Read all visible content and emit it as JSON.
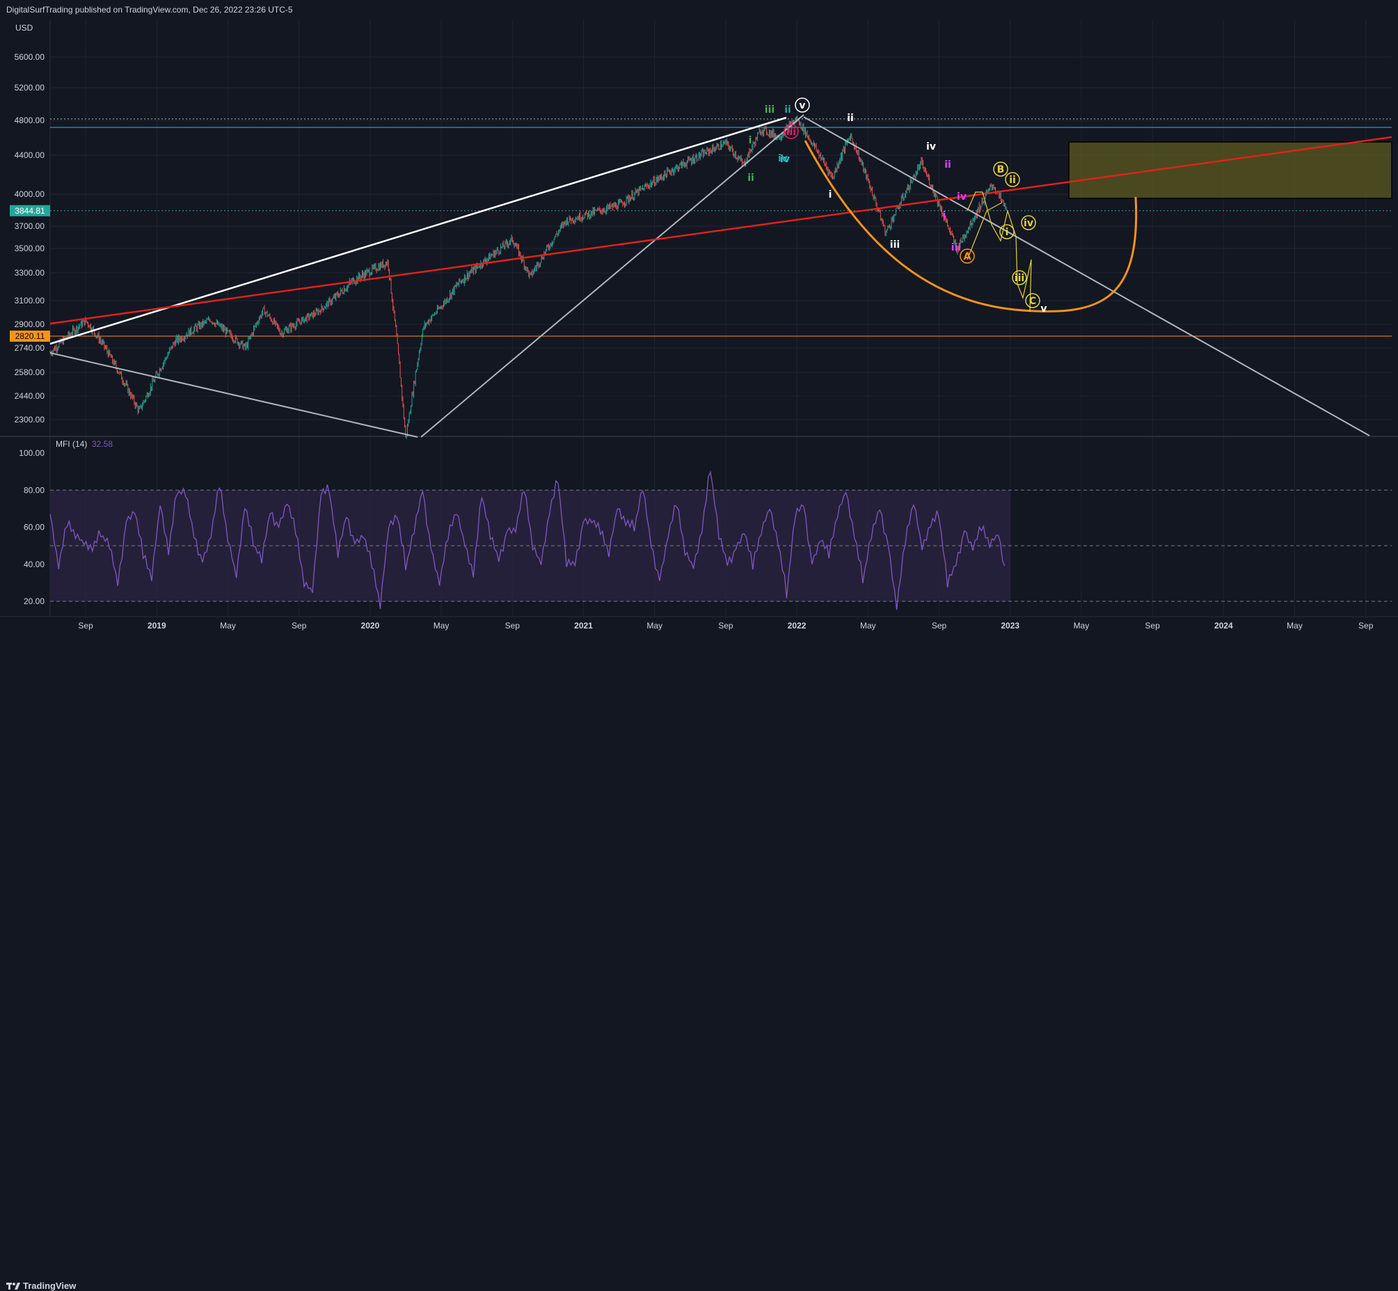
{
  "header": {
    "published_text": "DigitalSurfTrading published on TradingView.com, Dec 26, 2022 23:26 UTC-5"
  },
  "footer": {
    "logo_text": "TradingView"
  },
  "colors": {
    "background": "#131722",
    "grid": "#1f2433",
    "text": "#d1d4dc",
    "candle_up": "#26a69a",
    "candle_down": "#ef5350",
    "trend_white": "#ffffff",
    "trend_grey": "#b2b5be",
    "trend_red": "#e0221a",
    "arc_orange": "#f7931a",
    "cyan_line": "#26c6da",
    "orange_line": "#f7931a",
    "target_zone": "#5d5a1f",
    "mfi_line": "#7e57c2",
    "mfi_band": "#2a2340"
  },
  "chart_data": [
    {
      "type": "candlestick",
      "title": "",
      "currency_label": "USD",
      "y_ticks": [
        "5600.00",
        "5200.00",
        "4800.00",
        "4400.00",
        "4000.00",
        "3700.00",
        "3500.00",
        "3300.00",
        "3100.00",
        "2900.00",
        "2740.00",
        "2580.00",
        "2440.00",
        "2300.00"
      ],
      "x_ticks": [
        "Sep",
        "2019",
        "May",
        "Sep",
        "2020",
        "May",
        "Sep",
        "2021",
        "May",
        "Sep",
        "2022",
        "May",
        "Sep",
        "2023",
        "May",
        "Sep",
        "2024",
        "May",
        "Sep"
      ],
      "price_labels": [
        {
          "value": "3844.81",
          "color": "#26a69a"
        },
        {
          "value": "2820.11",
          "color": "#f7931a"
        }
      ],
      "horizontal_levels": [
        {
          "value": 4818,
          "style": "dotted",
          "color": "#b2b5be"
        },
        {
          "value": 4720,
          "style": "solid",
          "color": "#26c6da"
        },
        {
          "value": 3845,
          "style": "dotted",
          "color": "#26a69a"
        },
        {
          "value": 2820,
          "style": "solid",
          "color": "#f7931a"
        }
      ],
      "price_path": [
        [
          "2018-07",
          2710
        ],
        [
          "2018-09",
          2930
        ],
        [
          "2018-10",
          2760
        ],
        [
          "2018-12",
          2350
        ],
        [
          "2019-02",
          2780
        ],
        [
          "2019-04",
          2940
        ],
        [
          "2019-06",
          2740
        ],
        [
          "2019-07",
          3020
        ],
        [
          "2019-08",
          2840
        ],
        [
          "2019-10",
          3000
        ],
        [
          "2019-12",
          3240
        ],
        [
          "2020-02",
          3390
        ],
        [
          "2020-03",
          2190
        ],
        [
          "2020-04",
          2880
        ],
        [
          "2020-06",
          3230
        ],
        [
          "2020-09",
          3580
        ],
        [
          "2020-10",
          3270
        ],
        [
          "2020-12",
          3750
        ],
        [
          "2021-03",
          3900
        ],
        [
          "2021-06",
          4250
        ],
        [
          "2021-09",
          4540
        ],
        [
          "2021-10",
          4300
        ],
        [
          "2021-11",
          4700
        ],
        [
          "2021-12",
          4610
        ],
        [
          "2022-01",
          4818
        ],
        [
          "2022-03",
          4170
        ],
        [
          "2022-04",
          4630
        ],
        [
          "2022-06",
          3640
        ],
        [
          "2022-08",
          4320
        ],
        [
          "2022-10",
          3490
        ],
        [
          "2022-12",
          4100
        ],
        [
          "2022-12-26",
          3845
        ]
      ],
      "wave_labels": [
        "iii",
        "ii",
        "i",
        "ii",
        "iv",
        "iii",
        "iv",
        "v",
        "ii",
        "i",
        "iii",
        "iv",
        "iii",
        "ii",
        "i",
        "iv",
        "B",
        "ii",
        "iv",
        "i",
        "iii",
        "A",
        "C",
        "v"
      ]
    },
    {
      "type": "line",
      "title": "MFI (14)",
      "value_label": "32.58",
      "y_ticks": [
        "100.00",
        "80.00",
        "60.00",
        "40.00",
        "20.00"
      ],
      "ylim": [
        12,
        100
      ],
      "bands": [
        80,
        50,
        20
      ],
      "series": [
        {
          "values": [
            67,
            40,
            62,
            55,
            51,
            50,
            57,
            50,
            29,
            63,
            70,
            45,
            32,
            72,
            48,
            80,
            78,
            55,
            41,
            57,
            83,
            53,
            33,
            73,
            52,
            42,
            68,
            60,
            75,
            58,
            29,
            25,
            80,
            80,
            45,
            66,
            51,
            57,
            40,
            17,
            60,
            68,
            39,
            58,
            80,
            48,
            31,
            55,
            68,
            50,
            36,
            78,
            55,
            42,
            58,
            60,
            81,
            49,
            40,
            70,
            86,
            40,
            40,
            63,
            65,
            58,
            45,
            70,
            64,
            60,
            81,
            50,
            31,
            57,
            73,
            46,
            38,
            60,
            92,
            55,
            40,
            48,
            59,
            39,
            57,
            70,
            53,
            24,
            66,
            72,
            40,
            55,
            45,
            66,
            79,
            57,
            32,
            55,
            70,
            50,
            18,
            52,
            73,
            48,
            63,
            67,
            29,
            40,
            58,
            50,
            60,
            50,
            56,
            33
          ]
        }
      ]
    }
  ]
}
